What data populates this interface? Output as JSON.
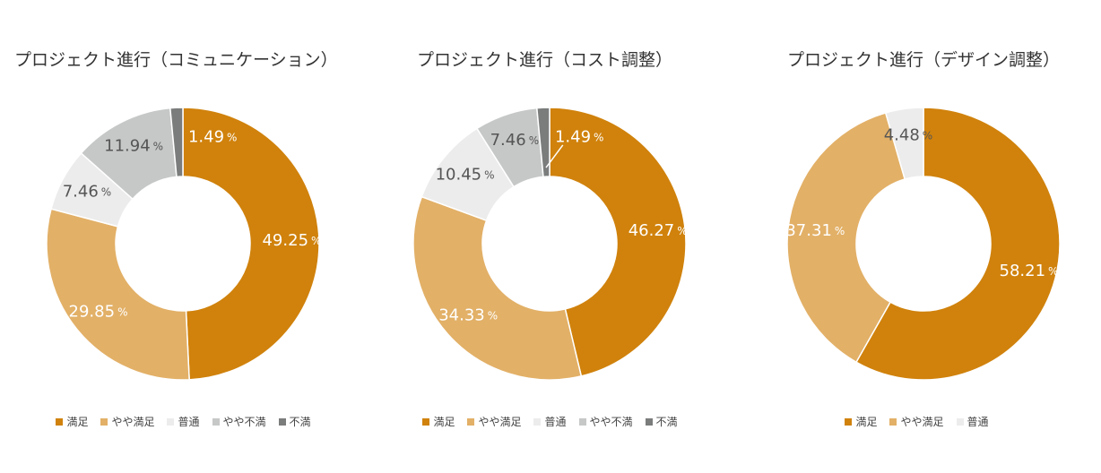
{
  "colors": {
    "満足": "#d0820c",
    "やや満足": "#e2b067",
    "普通": "#ececec",
    "やや不満": "#c6c7c7",
    "不満": "#7b7c7c"
  },
  "chart_data": [
    {
      "type": "pie",
      "title": "プロジェクト進行（コミュニケーション）",
      "categories": [
        "満足",
        "やや満足",
        "普通",
        "やや不満",
        "不満"
      ],
      "values": [
        49.25,
        29.85,
        7.46,
        11.94,
        1.49
      ],
      "labels": [
        "49.25",
        "29.85",
        "7.46",
        "11.94",
        "1.49"
      ],
      "unit": "%",
      "legend": "bottom"
    },
    {
      "type": "pie",
      "title": "プロジェクト進行（コスト調整）",
      "categories": [
        "満足",
        "やや満足",
        "普通",
        "やや不満",
        "不満"
      ],
      "values": [
        46.27,
        34.33,
        10.45,
        7.46,
        1.49
      ],
      "labels": [
        "46.27",
        "34.33",
        "10.45",
        "7.46",
        "1.49"
      ],
      "unit": "%",
      "legend": "bottom"
    },
    {
      "type": "pie",
      "title": "プロジェクト進行（デザイン調整）",
      "categories": [
        "満足",
        "やや満足",
        "普通"
      ],
      "values": [
        58.21,
        37.31,
        4.48
      ],
      "labels": [
        "58.21",
        "37.31",
        "4.48"
      ],
      "unit": "%",
      "legend": "bottom"
    }
  ]
}
